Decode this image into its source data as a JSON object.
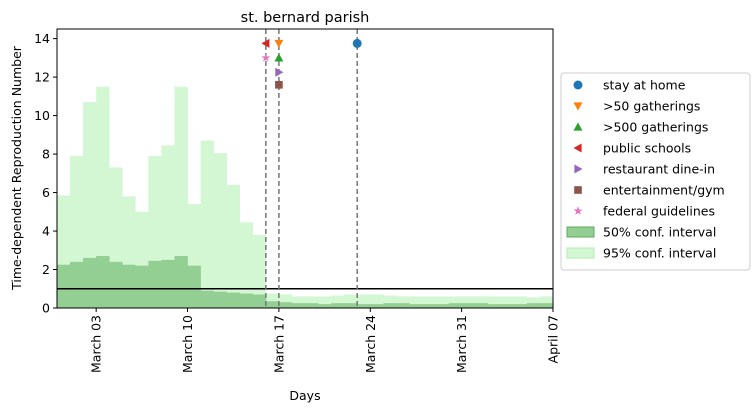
{
  "chart_data": {
    "type": "step-band",
    "title": "st. bernard parish",
    "xlabel": "Days",
    "ylabel": "Time-dependent Reproduction Number",
    "bins": [
      0,
      1,
      2,
      3,
      4,
      5,
      6,
      7,
      8,
      9,
      10,
      11,
      12,
      13,
      14,
      15,
      16,
      17,
      18,
      19,
      20,
      21,
      22,
      23,
      24,
      25,
      26,
      27,
      28,
      29,
      30,
      31,
      32,
      33,
      34,
      35,
      36,
      37,
      38
    ],
    "xlim": [
      0,
      38
    ],
    "xticks": [
      {
        "value": 3,
        "label": "March 03"
      },
      {
        "value": 10,
        "label": "March 10"
      },
      {
        "value": 17,
        "label": "March 17"
      },
      {
        "value": 24,
        "label": "March 24"
      },
      {
        "value": 31,
        "label": "March 31"
      },
      {
        "value": 38,
        "label": "April 07"
      }
    ],
    "ylim": [
      0,
      14.5
    ],
    "yticks": [
      0,
      2,
      4,
      6,
      8,
      10,
      12,
      14
    ],
    "hline": 1,
    "bands": [
      {
        "name": "50% conf. interval",
        "color": "#93ce93",
        "edge": "#5fa95f",
        "lower": [
          0,
          0,
          0,
          0,
          0,
          0,
          0,
          0,
          0,
          0,
          0,
          0,
          0,
          0,
          0,
          0,
          0,
          0,
          0,
          0,
          0,
          0,
          0,
          0,
          0,
          0,
          0,
          0,
          0,
          0,
          0,
          0,
          0,
          0,
          0,
          0,
          0,
          0
        ],
        "upper": [
          2.25,
          2.4,
          2.6,
          2.7,
          2.4,
          2.25,
          2.2,
          2.45,
          2.5,
          2.7,
          2.2,
          0.9,
          0.85,
          0.8,
          0.75,
          0.7,
          0.35,
          0.3,
          0.25,
          0.25,
          0.2,
          0.25,
          0.25,
          0.2,
          0.2,
          0.25,
          0.25,
          0.2,
          0.2,
          0.2,
          0.25,
          0.25,
          0.25,
          0.2,
          0.2,
          0.2,
          0.25,
          0.25
        ]
      },
      {
        "name": "95% conf. interval",
        "color": "#d2f7d2",
        "edge": "#b5ecb5",
        "lower": [
          0,
          0,
          0,
          0,
          0,
          0,
          0,
          0,
          0,
          0,
          0,
          0,
          0,
          0,
          0,
          0,
          0,
          0,
          0,
          0,
          0,
          0,
          0,
          0,
          0,
          0,
          0,
          0,
          0,
          0,
          0,
          0,
          0,
          0,
          0,
          0,
          0,
          0
        ],
        "upper": [
          5.85,
          7.9,
          10.7,
          11.5,
          7.3,
          5.8,
          5.0,
          7.9,
          8.45,
          11.5,
          5.4,
          8.7,
          8.05,
          6.4,
          4.45,
          3.8,
          0.75,
          0.7,
          0.6,
          0.6,
          0.6,
          0.65,
          0.7,
          0.7,
          0.7,
          0.65,
          0.6,
          0.6,
          0.6,
          0.6,
          0.6,
          0.6,
          0.6,
          0.6,
          0.6,
          0.6,
          0.55,
          0.6
        ]
      }
    ],
    "events": [
      {
        "name": "stay at home",
        "marker": "circle",
        "color": "#1f77b4",
        "x": 23,
        "y": 13.75
      },
      {
        "name": ">50 gatherings",
        "marker": "triangle-down",
        "color": "#ff7f0e",
        "x": 17,
        "y": 13.75
      },
      {
        "name": ">500 gatherings",
        "marker": "triangle-up",
        "color": "#2ca02c",
        "x": 17,
        "y": 13.0
      },
      {
        "name": "public schools",
        "marker": "triangle-left",
        "color": "#d62728",
        "x": 16,
        "y": 13.75
      },
      {
        "name": "restaurant dine-in",
        "marker": "triangle-right",
        "color": "#9467bd",
        "x": 17,
        "y": 12.25
      },
      {
        "name": "entertainment/gym",
        "marker": "square",
        "color": "#8c564b",
        "x": 17,
        "y": 11.6
      },
      {
        "name": "federal guidelines",
        "marker": "star",
        "color": "#e377c2",
        "x": 16,
        "y": 13.0
      }
    ],
    "legend": "right"
  }
}
